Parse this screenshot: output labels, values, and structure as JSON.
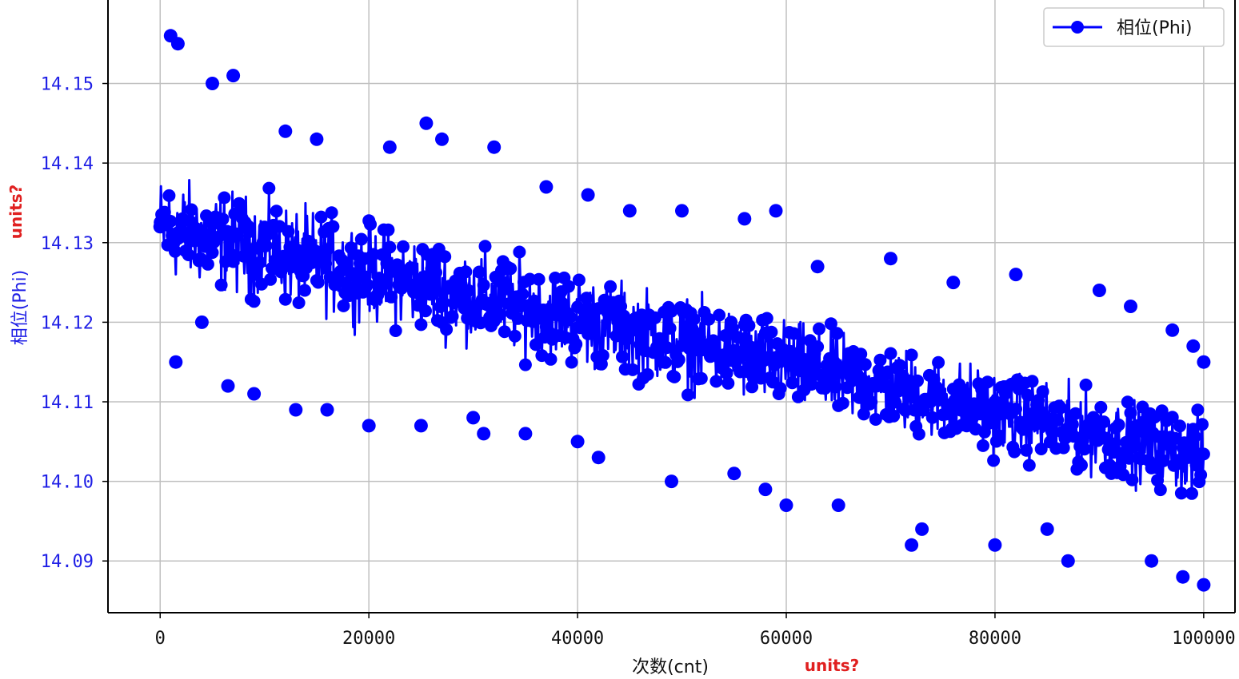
{
  "chart_data": {
    "type": "line",
    "title": "",
    "xlabel": "次数(cnt)",
    "ylabel": "相位(Phi)",
    "xlim": [
      -5000,
      103000
    ],
    "ylim": [
      14.0835,
      14.1625
    ],
    "x_ticks": [
      0,
      20000,
      40000,
      60000,
      80000,
      100000
    ],
    "x_tick_labels": [
      "0",
      "20000",
      "40000",
      "60000",
      "80000",
      "100000"
    ],
    "y_ticks": [
      14.09,
      14.1,
      14.11,
      14.12,
      14.13,
      14.14,
      14.15
    ],
    "y_tick_labels": [
      "14.09",
      "14.10",
      "14.11",
      "14.12",
      "14.13",
      "14.14",
      "14.15"
    ],
    "grid": true,
    "legend_position": "top-right",
    "annotations": [
      "units?",
      "units?"
    ],
    "series": [
      {
        "name": "相位(Phi)",
        "color": "#0000ff",
        "marker": "circle",
        "x_range": [
          0,
          100000
        ],
        "trend_start": 14.132,
        "trend_end": 14.103,
        "spread_start": 0.009,
        "spread_end": 0.007,
        "points": [
          [
            0,
            14.132
          ],
          [
            1000,
            14.156
          ],
          [
            1500,
            14.115
          ],
          [
            1700,
            14.155
          ],
          [
            4000,
            14.12
          ],
          [
            5000,
            14.15
          ],
          [
            6500,
            14.112
          ],
          [
            7000,
            14.151
          ],
          [
            9000,
            14.111
          ],
          [
            12000,
            14.144
          ],
          [
            13000,
            14.109
          ],
          [
            15000,
            14.143
          ],
          [
            16000,
            14.109
          ],
          [
            20000,
            14.107
          ],
          [
            22000,
            14.142
          ],
          [
            25000,
            14.107
          ],
          [
            25500,
            14.145
          ],
          [
            27000,
            14.143
          ],
          [
            30000,
            14.108
          ],
          [
            31000,
            14.106
          ],
          [
            32000,
            14.142
          ],
          [
            35000,
            14.106
          ],
          [
            37000,
            14.137
          ],
          [
            40000,
            14.105
          ],
          [
            41000,
            14.136
          ],
          [
            42000,
            14.103
          ],
          [
            45000,
            14.134
          ],
          [
            49000,
            14.1
          ],
          [
            50000,
            14.134
          ],
          [
            55000,
            14.101
          ],
          [
            56000,
            14.133
          ],
          [
            58000,
            14.099
          ],
          [
            59000,
            14.134
          ],
          [
            60000,
            14.097
          ],
          [
            63000,
            14.127
          ],
          [
            65000,
            14.097
          ],
          [
            70000,
            14.128
          ],
          [
            72000,
            14.092
          ],
          [
            73000,
            14.094
          ],
          [
            76000,
            14.125
          ],
          [
            80000,
            14.092
          ],
          [
            82000,
            14.126
          ],
          [
            85000,
            14.094
          ],
          [
            87000,
            14.09
          ],
          [
            90000,
            14.124
          ],
          [
            93000,
            14.122
          ],
          [
            95000,
            14.09
          ],
          [
            97000,
            14.119
          ],
          [
            98000,
            14.088
          ],
          [
            99000,
            14.117
          ],
          [
            100000,
            14.087
          ],
          [
            100000,
            14.115
          ]
        ]
      }
    ]
  }
}
